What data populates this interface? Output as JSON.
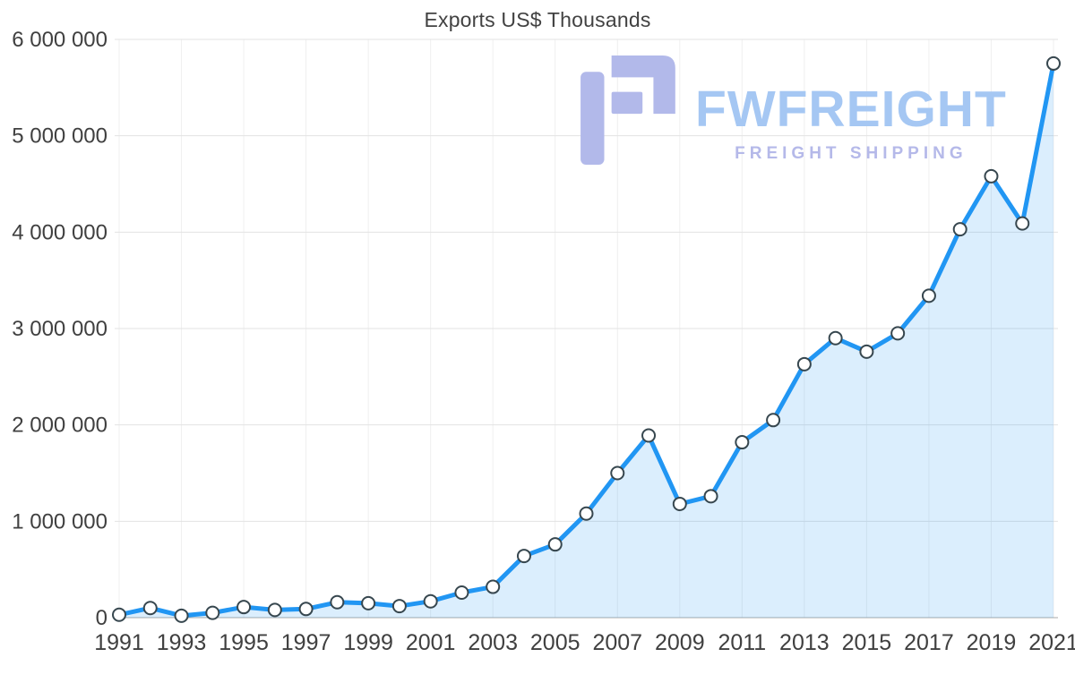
{
  "chart_data": {
    "type": "area",
    "title": "Exports US$ Thousands",
    "x": [
      1991,
      1992,
      1993,
      1994,
      1995,
      1996,
      1997,
      1998,
      1999,
      2000,
      2001,
      2002,
      2003,
      2004,
      2005,
      2006,
      2007,
      2008,
      2009,
      2010,
      2011,
      2012,
      2013,
      2014,
      2015,
      2016,
      2017,
      2018,
      2019,
      2020,
      2021
    ],
    "values": [
      30000,
      100000,
      20000,
      50000,
      110000,
      80000,
      90000,
      160000,
      150000,
      120000,
      170000,
      260000,
      320000,
      640000,
      760000,
      1080000,
      1500000,
      1890000,
      1180000,
      1260000,
      1820000,
      2050000,
      2630000,
      2900000,
      2760000,
      2950000,
      3340000,
      4030000,
      4580000,
      4090000,
      5750000
    ],
    "ylim": [
      0,
      6000000
    ],
    "y_ticks": [
      0,
      1000000,
      2000000,
      3000000,
      4000000,
      5000000,
      6000000
    ],
    "y_tick_labels": [
      "0",
      "1 000 000",
      "2 000 000",
      "3 000 000",
      "4 000 000",
      "5 000 000",
      "6 000 000"
    ],
    "x_tick_labels": [
      "1991",
      "1993",
      "1995",
      "1997",
      "1999",
      "2001",
      "2003",
      "2005",
      "2007",
      "2009",
      "2011",
      "2013",
      "2015",
      "2017",
      "2019",
      "2021"
    ],
    "grid": true,
    "xlabel": "",
    "ylabel": "",
    "line_color": "#2196f3",
    "area_color": "rgba(33, 150, 243, 0.16)",
    "marker_fill": "#ffffff",
    "marker_stroke": "#37474f",
    "gridline_color": "#e3e3e3",
    "v_gridline_color": "#efefef",
    "zero_line_color": "#a8a8a8",
    "tick_label_color": "#404040"
  },
  "watermark": {
    "brand": "FWFREIGHT",
    "tagline": "FREIGHT SHIPPING",
    "brand_color": "#a5c7f3",
    "tagline_color": "#b5b9e9",
    "logo_color": "#b2b9ea"
  }
}
